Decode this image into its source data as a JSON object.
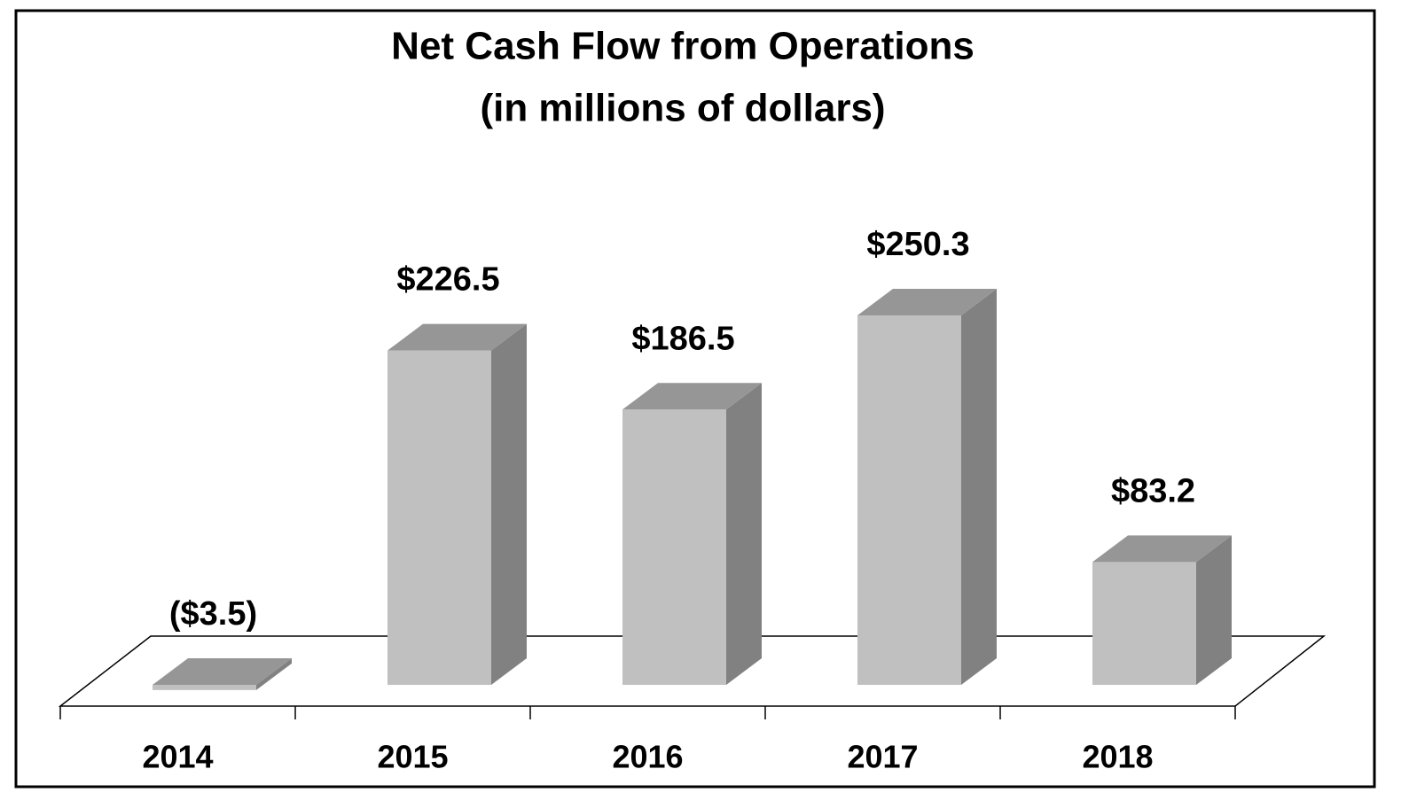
{
  "chart_data": {
    "type": "bar3d",
    "title": "Net Cash Flow from Operations",
    "subtitle": "(in millions of dollars)",
    "categories": [
      "2014",
      "2015",
      "2016",
      "2017",
      "2018"
    ],
    "values": [
      -3.5,
      226.5,
      186.5,
      250.3,
      83.2
    ],
    "value_labels": [
      "($3.5)",
      "$226.5",
      "$186.5",
      "$250.3",
      "$83.2"
    ],
    "color": "#c0c0c0"
  }
}
